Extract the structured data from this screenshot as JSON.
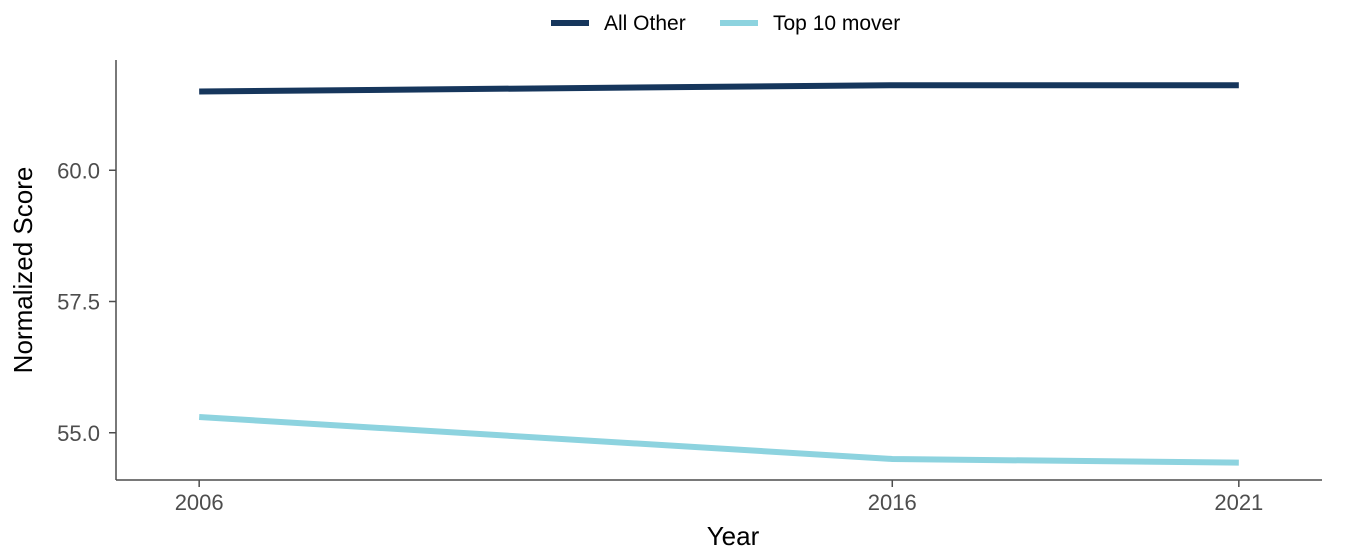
{
  "chart_data": {
    "type": "line",
    "xlabel": "Year",
    "ylabel": "Normalized Score",
    "x": [
      2006,
      2016,
      2021
    ],
    "x_ticks": [
      "2006",
      "2016",
      "2021"
    ],
    "y_ticks": [
      "55.0",
      "57.5",
      "60.0"
    ],
    "xlim": [
      2004.8,
      2022.2
    ],
    "ylim": [
      54.1,
      62.1
    ],
    "grid": false,
    "legend_position": "top",
    "series": [
      {
        "name": "All Other",
        "color": "#16365c",
        "values": [
          61.5,
          61.62,
          61.62
        ]
      },
      {
        "name": "Top 10 mover",
        "color": "#8dd3df",
        "values": [
          55.3,
          54.5,
          54.43
        ]
      }
    ]
  }
}
